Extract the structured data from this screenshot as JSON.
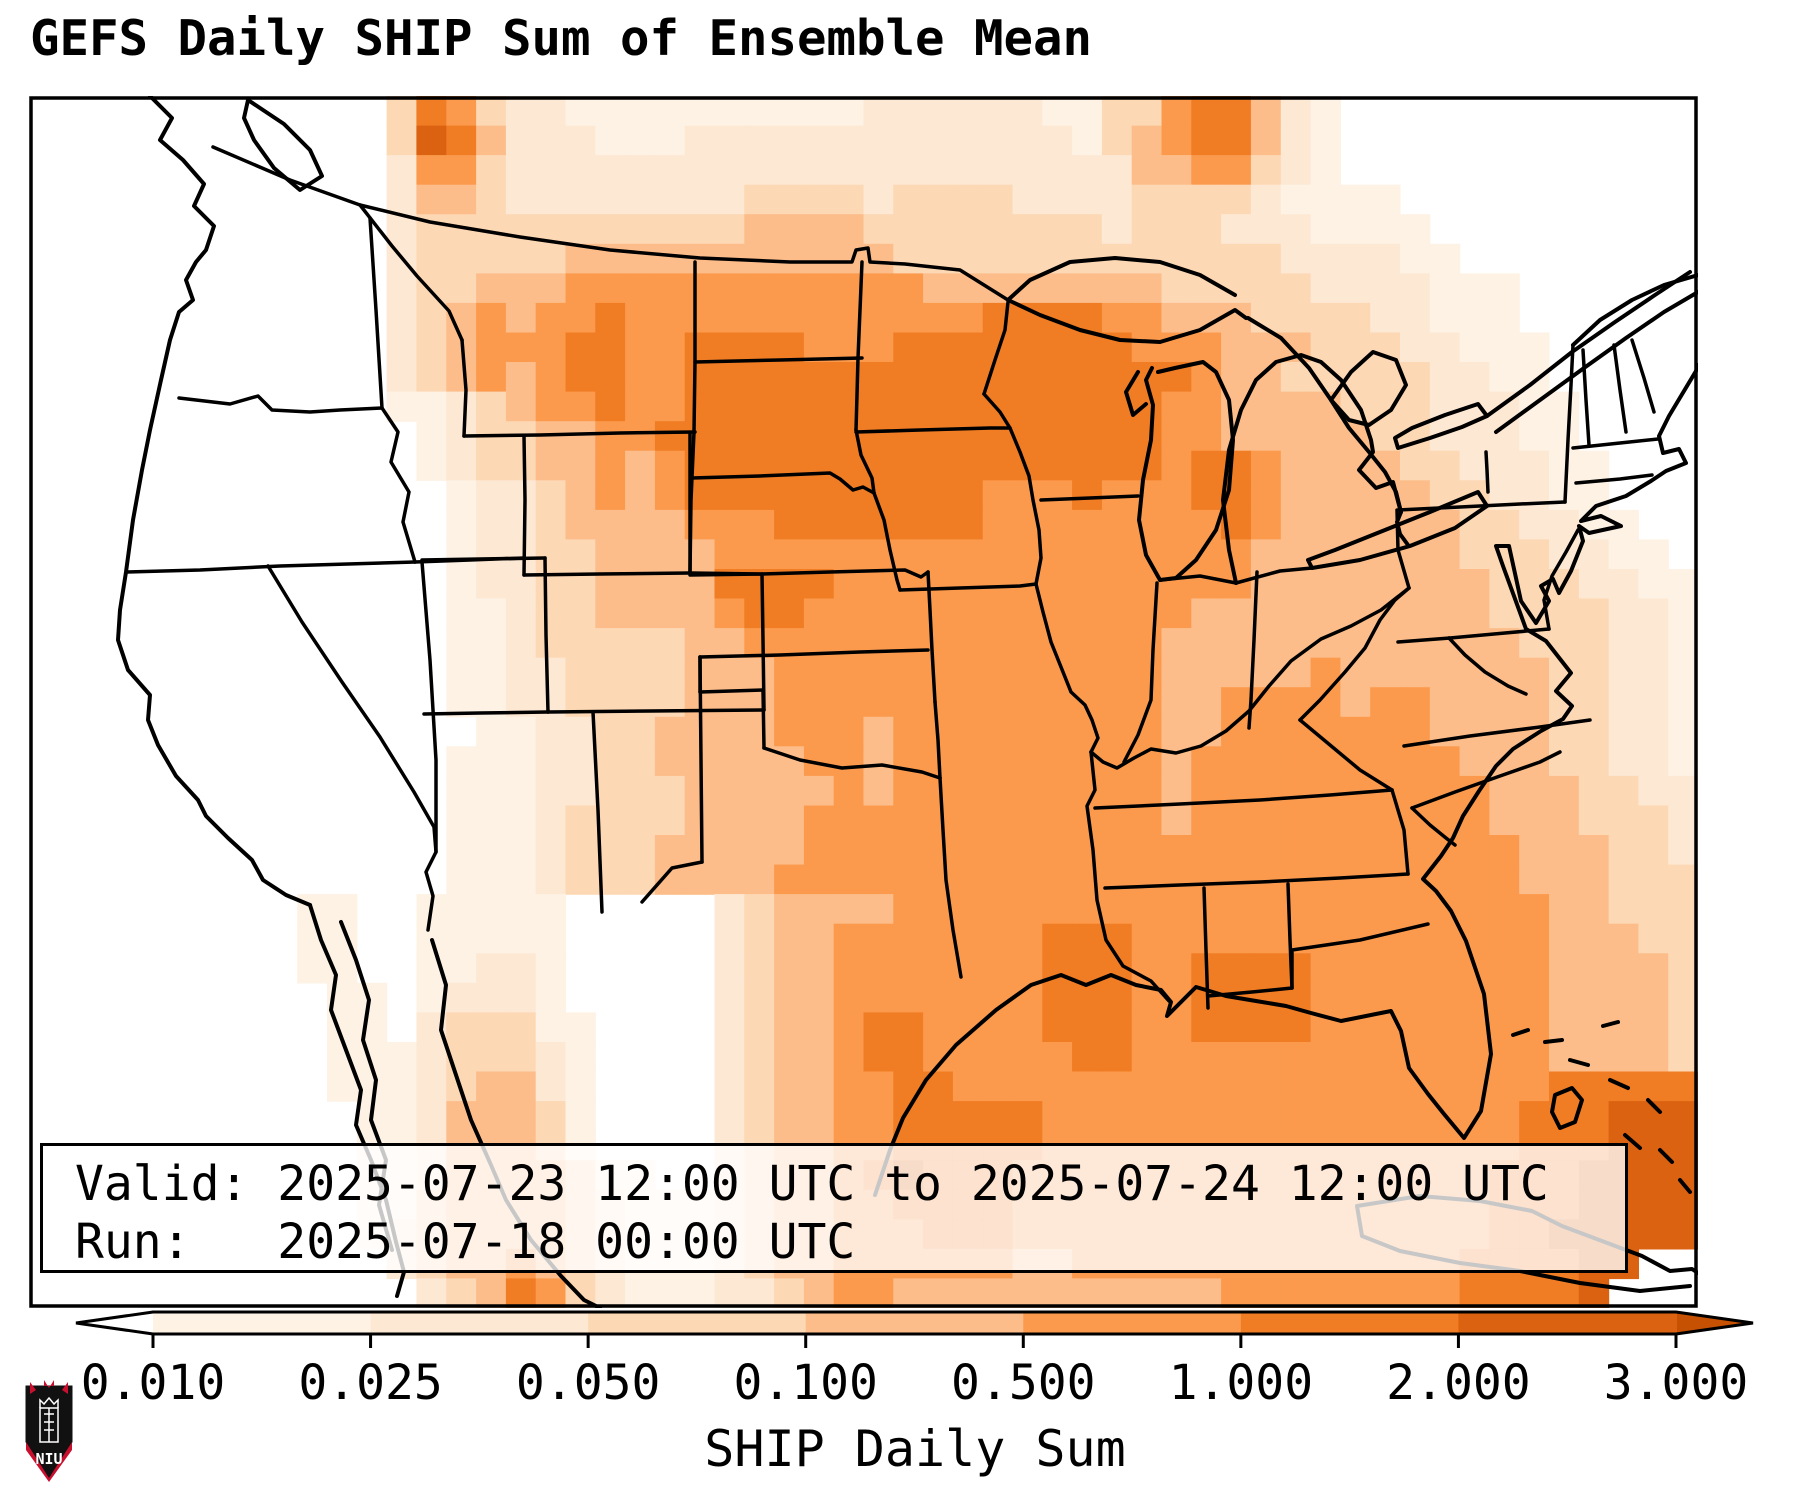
{
  "title": "GEFS Daily SHIP Sum of Ensemble Mean",
  "info_box": {
    "valid_line": "Valid: 2025-07-23 12:00 UTC to 2025-07-24 12:00 UTC",
    "run_line": "Run:   2025-07-18 00:00 UTC"
  },
  "colorbar": {
    "label": "SHIP Daily Sum",
    "ticks": [
      "0.010",
      "0.025",
      "0.050",
      "0.100",
      "0.500",
      "1.000",
      "2.000",
      "3.000"
    ],
    "segment_colors": [
      "#fdf2e4",
      "#fde8d4",
      "#fdd8b4",
      "#fcbd8a",
      "#fb9a4d",
      "#f07c24",
      "#db6210"
    ],
    "under_color": "#ffffff",
    "over_color": "#c65102",
    "outline_color": "#000000"
  },
  "logo": {
    "text": "NIU",
    "shield_black": "#111111",
    "shield_red": "#c8102e"
  },
  "chart_data": {
    "type": "heatmap",
    "title": "GEFS Daily SHIP Sum of Ensemble Mean",
    "variable": "SHIP Daily Sum",
    "valid": "2025-07-23 12:00 UTC to 2025-07-24 12:00 UTC",
    "run": "2025-07-18 00:00 UTC",
    "scale_values": [
      0.01,
      0.025,
      0.05,
      0.1,
      0.5,
      1.0,
      2.0,
      3.0
    ],
    "bin_colors": {
      "0": "#ffffff",
      "1": "#fdf2e4",
      "2": "#fde8d4",
      "3": "#fdd8b4",
      "4": "#fcbd8a",
      "5": "#fb9a4d",
      "6": "#f07c24",
      "7": "#db6210",
      "8": "#c65102"
    },
    "grid_cols": 56,
    "grid_rows": 41,
    "bins": [
      "00000000000036532211111111112222221133566421000000000000",
      "00000000000037642221112222222222222134566421000000000000",
      "00000000000025532222222222222222222224455321000000000000",
      "00000000000024432222222233332333322223333211110000000000",
      "00000000000023333333333344443333333323332221111000000000",
      "00000000000023333344444444444333333333333322221100000000",
      "00000000000023344455555555555544444444333332222111000000",
      "00000000000023454556555555555555666655444333322111000000",
      "00000000000023455566556666555666666665554443332211100000",
      "00000000000023454566556666666666666666654433333221100000",
      "00000000000011234556556666666666666666554444333222110000",
      "00000000000001233445566666666666666666554444433222110000",
      "00000000000001233445456666666666666666566544443322211000",
      "00000000000000122345456666666666555655566544444332211000",
      "00000000000000122344445556666666555555556544444433221100",
      "00000000000000122334444555555555555555555444444433322110",
      "00000000000000122334444666655555555555555444444443332211",
      "00000000000000112334444566555555555555544444444443333221",
      "00000000000000112333334455555555555555444444444444333221",
      "00000000000000112233334445555555555555444445444444433221",
      "00000000000000112233334445555555555555445555455444433221",
      "00000000000000011223344445554555555555445555555444433221",
      "00000000000000111223344444554555555555455555555544433221",
      "00000000000000111223334444454555555555455555555554443322",
      "00000000000000111233334444555555555555455555555554443332",
      "00000000000000111233344444555555555555555555555555444332",
      "00000000000000111233344445555555555555555555555555444333",
      "00000000011001111100000234444555555555555555555555544333",
      "00000000011001111100000234455555556665555555555555544433",
      "00000000011001122100000234455555556665566665555555544443",
      "00000000001101222100000234455555556665566665555555544443",
      "00000000001102333110000234456655556665566665555555544443",
      "00000000001112333210000234456655555665555555555555544443",
      "00000000001112344210000234455665555555555555555555566666",
      "00000000000112444310000234455666665555555555555555666777",
      "00000000000112444310000234455666665555555555555555666777",
      "00000000000112444431100234456766655555555555555556667777",
      "00000000000113444432111234455666655555555555555556667777",
      "00000000000123444432111234455566655555555555555556677777",
      "00000000000023445432111234455555544555555555555566667700",
      "00000000000002346532111223455444444444445555555566667000"
    ]
  }
}
